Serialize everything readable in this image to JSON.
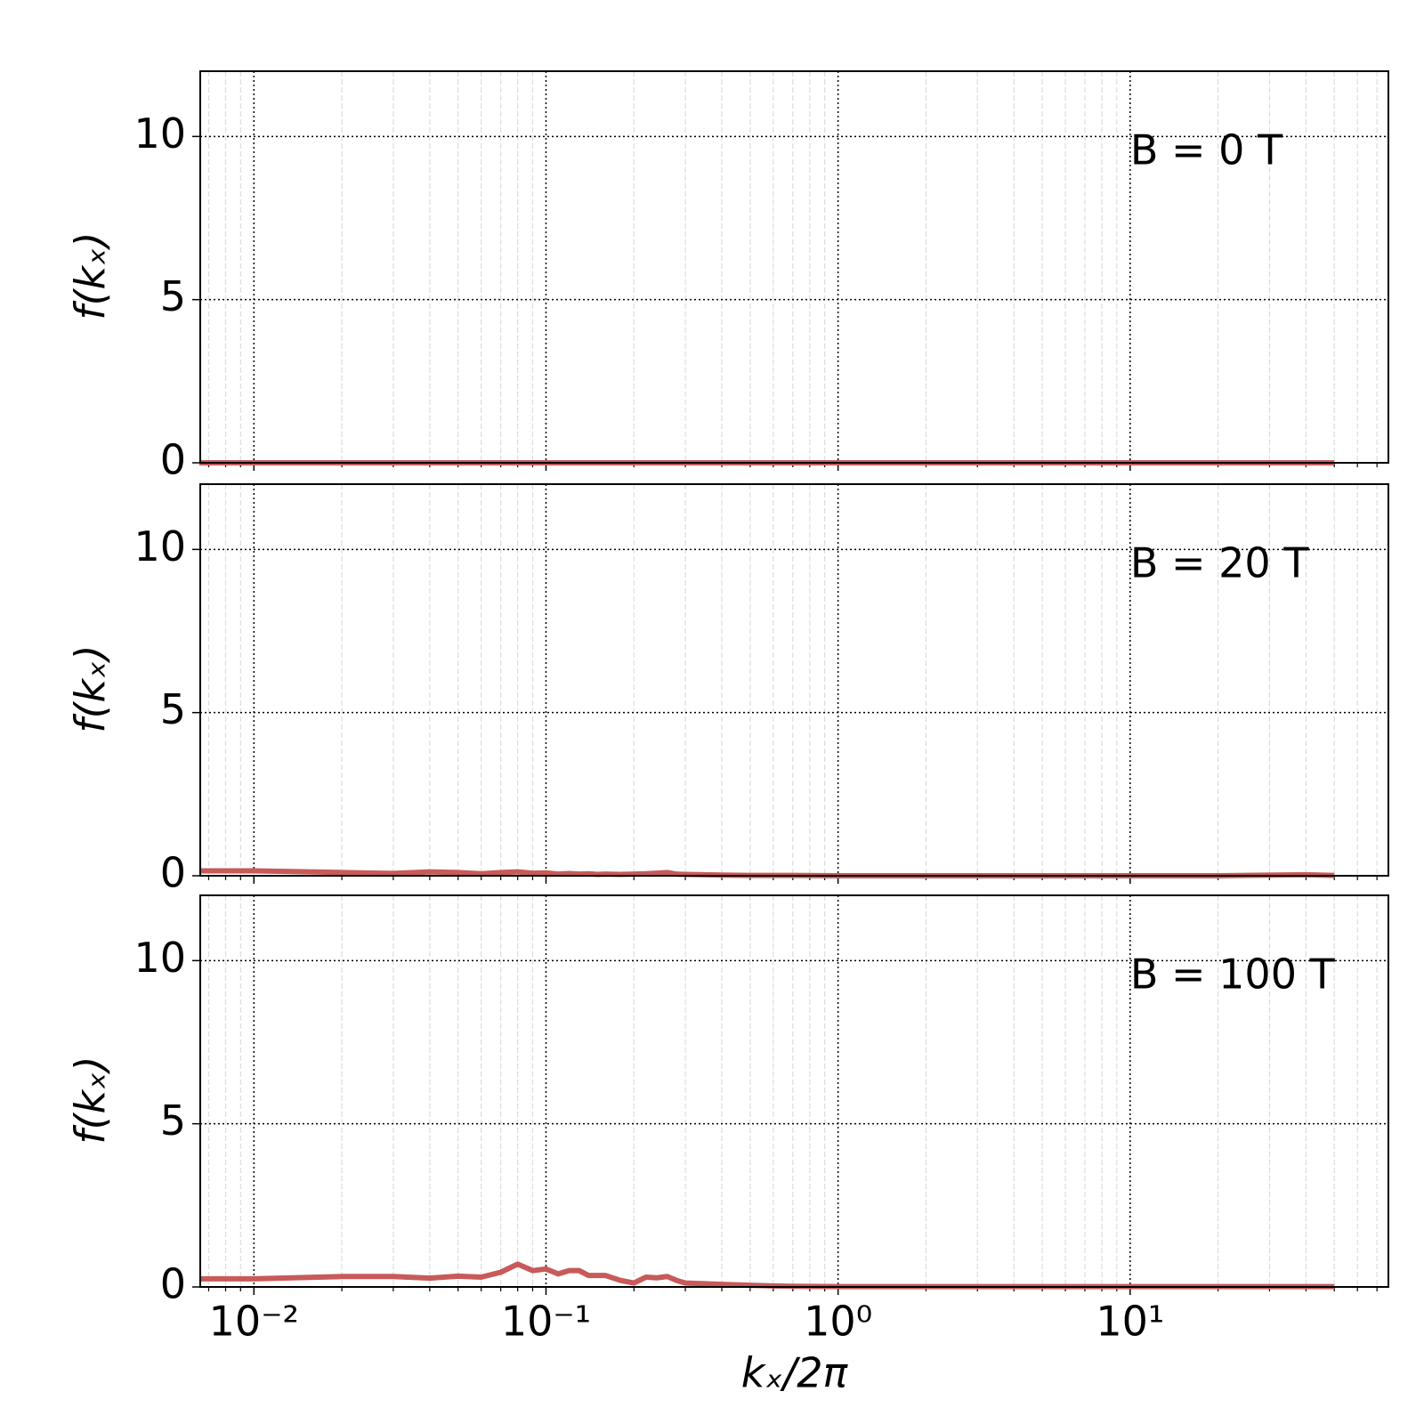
{
  "chart_data": [
    {
      "type": "line",
      "annotation": "B = 0 T",
      "ylabel": "f(kₓ)",
      "x": [
        0.0065,
        0.01,
        0.1,
        1,
        10,
        50
      ],
      "series": [
        {
          "color": "#c85a5a",
          "values": [
            0,
            0,
            0,
            0,
            0,
            0
          ]
        }
      ],
      "xlim": [
        0.00655,
        76.6
      ],
      "ylim": [
        0,
        12
      ],
      "xticks": [
        0.01,
        0.1,
        1,
        10
      ],
      "yticks": [
        0,
        5,
        10
      ],
      "log_x": true,
      "grid": true
    },
    {
      "type": "line",
      "annotation": "B = 20 T",
      "ylabel": "f(kₓ)",
      "x": [
        0.0065,
        0.01,
        0.02,
        0.03,
        0.04,
        0.05,
        0.06,
        0.07,
        0.08,
        0.09,
        0.1,
        0.11,
        0.12,
        0.13,
        0.14,
        0.15,
        0.16,
        0.18,
        0.2,
        0.22,
        0.24,
        0.26,
        0.28,
        0.3,
        0.35,
        0.4,
        0.5,
        0.6,
        0.7,
        1,
        2,
        5,
        10,
        20,
        40,
        50
      ],
      "series": [
        {
          "color": "#c85a5a",
          "values": [
            0.15,
            0.15,
            0.1,
            0.07,
            0.12,
            0.1,
            0.06,
            0.1,
            0.12,
            0.08,
            0.09,
            0.05,
            0.07,
            0.05,
            0.06,
            0.04,
            0.05,
            0.04,
            0.05,
            0.06,
            0.08,
            0.1,
            0.05,
            0.04,
            0.03,
            0.02,
            0.01,
            0.01,
            0.01,
            0,
            0,
            0,
            0,
            0,
            0.03,
            0.01
          ]
        }
      ],
      "xlim": [
        0.00655,
        76.6
      ],
      "ylim": [
        0,
        12
      ],
      "xticks": [
        0.01,
        0.1,
        1,
        10
      ],
      "yticks": [
        0,
        5,
        10
      ],
      "log_x": true,
      "grid": true
    },
    {
      "type": "line",
      "annotation": "B = 100 T",
      "ylabel": "f(kₓ)",
      "xlabel": "kₓ/2π",
      "x": [
        0.0065,
        0.01,
        0.02,
        0.03,
        0.04,
        0.05,
        0.06,
        0.07,
        0.08,
        0.09,
        0.1,
        0.11,
        0.12,
        0.13,
        0.14,
        0.15,
        0.16,
        0.18,
        0.2,
        0.22,
        0.24,
        0.26,
        0.28,
        0.3,
        0.35,
        0.4,
        0.5,
        0.6,
        0.7,
        1,
        2,
        5,
        10,
        20,
        50
      ],
      "series": [
        {
          "color": "#c85a5a",
          "values": [
            0.25,
            0.25,
            0.32,
            0.32,
            0.27,
            0.33,
            0.3,
            0.45,
            0.7,
            0.5,
            0.55,
            0.4,
            0.5,
            0.5,
            0.35,
            0.35,
            0.35,
            0.2,
            0.12,
            0.3,
            0.28,
            0.32,
            0.2,
            0.12,
            0.1,
            0.08,
            0.05,
            0.03,
            0.02,
            0.01,
            0.01,
            0.01,
            0.01,
            0.01,
            0.01
          ]
        }
      ],
      "xlim": [
        0.00655,
        76.6
      ],
      "ylim": [
        0,
        12
      ],
      "xticks": [
        {
          "value": 0.01,
          "label": "10⁻²"
        },
        {
          "value": 0.1,
          "label": "10⁻¹"
        },
        {
          "value": 1,
          "label": "10⁰"
        },
        {
          "value": 10,
          "label": "10¹"
        }
      ],
      "yticks": [
        0,
        5,
        10
      ],
      "log_x": true,
      "grid": true
    }
  ]
}
